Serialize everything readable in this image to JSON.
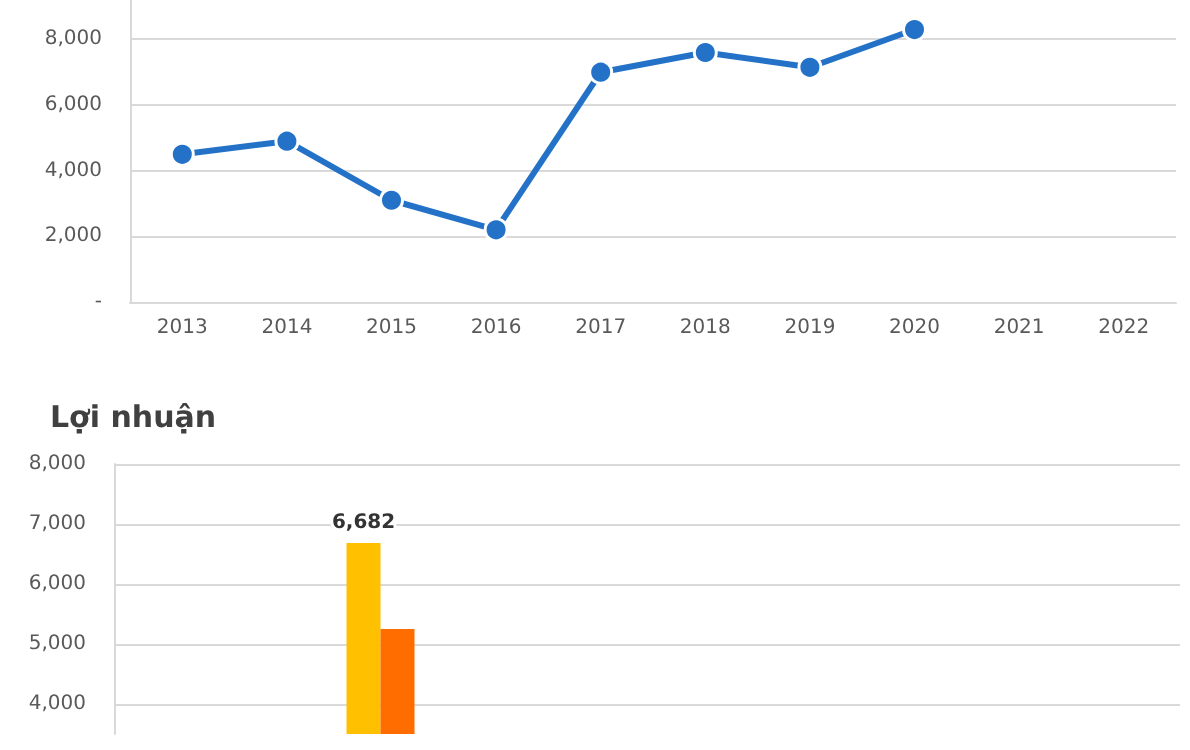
{
  "chart_data": [
    {
      "type": "line",
      "categories": [
        "2013",
        "2014",
        "2015",
        "2016",
        "2017",
        "2018",
        "2019",
        "2020",
        "2021",
        "2022"
      ],
      "series": [
        {
          "color": "#2472c8",
          "values": [
            4500,
            4900,
            3100,
            2200,
            7000,
            7600,
            7150,
            8300,
            null,
            null
          ]
        }
      ],
      "ylim": [
        0,
        9200
      ],
      "yticks": [
        {
          "value": 0,
          "label": "-"
        },
        {
          "value": 2000,
          "label": "2,000"
        },
        {
          "value": 4000,
          "label": "4,000"
        },
        {
          "value": 6000,
          "label": "6,000"
        },
        {
          "value": 8000,
          "label": "8,000"
        }
      ],
      "grid": "y",
      "marker": "circle",
      "line_style": "solid"
    },
    {
      "type": "bar",
      "title": "Lợi nhuận",
      "categories": [
        null,
        null,
        null,
        null,
        null,
        null,
        null,
        null,
        null,
        null
      ],
      "series": [
        {
          "color": "#ffc000",
          "values": [
            null,
            null,
            6682,
            null,
            null,
            null,
            null,
            null,
            null,
            null
          ],
          "value_labels": [
            null,
            null,
            "6,682",
            null,
            null,
            null,
            null,
            null,
            null,
            null
          ]
        },
        {
          "color": "#ff6d00",
          "values": [
            null,
            null,
            5250,
            null,
            null,
            null,
            null,
            null,
            null,
            null
          ]
        }
      ],
      "ylim": [
        3500,
        8000
      ],
      "yticks": [
        {
          "value": 4000,
          "label": "4,000"
        },
        {
          "value": 5000,
          "label": "5,000"
        },
        {
          "value": 6000,
          "label": "6,000"
        },
        {
          "value": 7000,
          "label": "7,000"
        },
        {
          "value": 8000,
          "label": "8,000"
        }
      ],
      "grid": "y"
    }
  ]
}
